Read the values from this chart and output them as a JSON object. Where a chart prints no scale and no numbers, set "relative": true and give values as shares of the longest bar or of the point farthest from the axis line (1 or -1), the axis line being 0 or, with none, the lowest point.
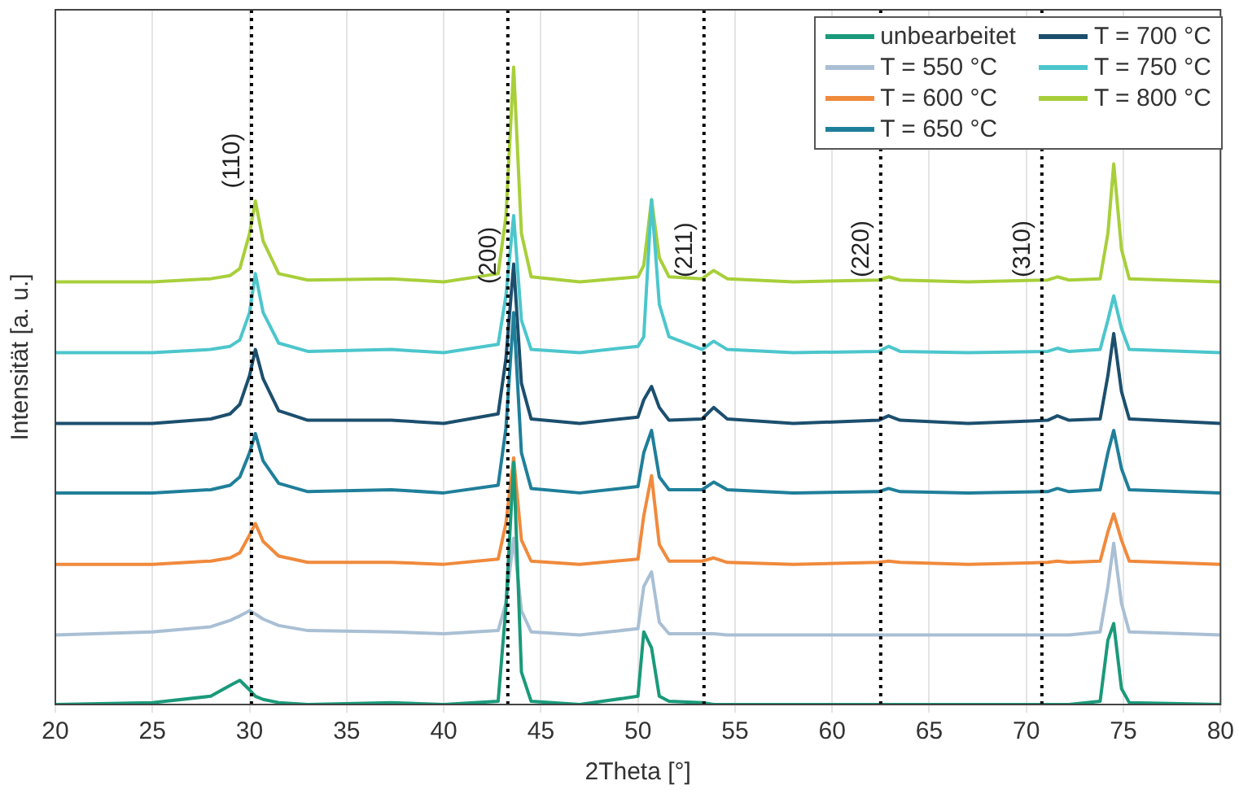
{
  "chart_data": {
    "type": "line",
    "relative": true,
    "xlabel": "2Theta [°]",
    "ylabel": "Intensität [a. u.]",
    "x": [
      20,
      25,
      28,
      29,
      29.5,
      30,
      30.3,
      30.7,
      31.5,
      33,
      37.3,
      40,
      42.8,
      43.2,
      43.6,
      44.0,
      44.5,
      47,
      50.0,
      50.3,
      50.7,
      51.1,
      51.6,
      53.3,
      53.9,
      54.6,
      58,
      62.4,
      62.9,
      63.5,
      67,
      71.1,
      71.6,
      72.2,
      73.8,
      74.2,
      74.5,
      74.9,
      75.3,
      80
    ],
    "xlim": [
      20,
      80
    ],
    "xticks": [
      20,
      25,
      30,
      35,
      40,
      45,
      50,
      55,
      60,
      65,
      70,
      75,
      80
    ],
    "grid": true,
    "legend": "top right",
    "marker": "none",
    "line_style": "solid",
    "series": [
      {
        "name": "unbearbeitet",
        "color": "#1a9a7a",
        "values": [
          0,
          0.003,
          0.013,
          0.03,
          0.038,
          0.023,
          0.013,
          0.008,
          0.003,
          0,
          0.003,
          0,
          0.005,
          0.152,
          0.38,
          0.051,
          0.005,
          0,
          0.013,
          0.114,
          0.089,
          0.013,
          0.005,
          0.003,
          0,
          0,
          0,
          0,
          0,
          0,
          0,
          0,
          0,
          0,
          0.005,
          0.101,
          0.127,
          0.025,
          0.003,
          0
        ]
      },
      {
        "name": "T = 550 °C",
        "color": "#a9bfd4",
        "values": [
          0.109,
          0.114,
          0.122,
          0.132,
          0.139,
          0.147,
          0.142,
          0.134,
          0.124,
          0.116,
          0.114,
          0.111,
          0.116,
          0.159,
          0.261,
          0.147,
          0.114,
          0.109,
          0.119,
          0.185,
          0.208,
          0.129,
          0.111,
          0.111,
          0.111,
          0.109,
          0.109,
          0.109,
          0.109,
          0.109,
          0.109,
          0.109,
          0.109,
          0.109,
          0.114,
          0.185,
          0.253,
          0.159,
          0.114,
          0.109
        ]
      },
      {
        "name": "T = 600 °C",
        "color": "#f08a3c",
        "values": [
          0.22,
          0.22,
          0.225,
          0.23,
          0.238,
          0.266,
          0.284,
          0.256,
          0.233,
          0.223,
          0.223,
          0.22,
          0.228,
          0.284,
          0.387,
          0.258,
          0.225,
          0.22,
          0.228,
          0.296,
          0.359,
          0.251,
          0.225,
          0.225,
          0.23,
          0.223,
          0.22,
          0.223,
          0.225,
          0.223,
          0.22,
          0.223,
          0.225,
          0.223,
          0.225,
          0.271,
          0.299,
          0.258,
          0.225,
          0.22
        ]
      },
      {
        "name": "T = 650 °C",
        "color": "#1f7f9a",
        "values": [
          0.332,
          0.332,
          0.337,
          0.344,
          0.357,
          0.395,
          0.425,
          0.382,
          0.347,
          0.334,
          0.337,
          0.332,
          0.344,
          0.433,
          0.615,
          0.395,
          0.339,
          0.332,
          0.342,
          0.395,
          0.43,
          0.357,
          0.337,
          0.337,
          0.349,
          0.337,
          0.332,
          0.334,
          0.339,
          0.334,
          0.332,
          0.334,
          0.339,
          0.334,
          0.337,
          0.395,
          0.43,
          0.37,
          0.337,
          0.332
        ]
      },
      {
        "name": "T = 700 °C",
        "color": "#1c4f6e",
        "values": [
          0.441,
          0.441,
          0.448,
          0.456,
          0.471,
          0.516,
          0.557,
          0.511,
          0.461,
          0.446,
          0.446,
          0.441,
          0.456,
          0.542,
          0.691,
          0.504,
          0.448,
          0.441,
          0.451,
          0.478,
          0.499,
          0.466,
          0.446,
          0.448,
          0.466,
          0.448,
          0.441,
          0.446,
          0.453,
          0.446,
          0.441,
          0.446,
          0.453,
          0.446,
          0.448,
          0.516,
          0.582,
          0.491,
          0.448,
          0.441
        ]
      },
      {
        "name": "T = 750 °C",
        "color": "#4cc6cc",
        "values": [
          0.552,
          0.552,
          0.557,
          0.562,
          0.572,
          0.615,
          0.676,
          0.615,
          0.567,
          0.554,
          0.557,
          0.552,
          0.565,
          0.641,
          0.767,
          0.603,
          0.557,
          0.552,
          0.562,
          0.577,
          0.792,
          0.628,
          0.577,
          0.557,
          0.57,
          0.557,
          0.552,
          0.554,
          0.562,
          0.554,
          0.552,
          0.554,
          0.559,
          0.554,
          0.557,
          0.603,
          0.641,
          0.59,
          0.557,
          0.552
        ]
      },
      {
        "name": "T = 800 °C",
        "color": "#a8cf3a",
        "values": [
          0.663,
          0.663,
          0.668,
          0.673,
          0.684,
          0.739,
          0.79,
          0.727,
          0.676,
          0.666,
          0.668,
          0.663,
          0.676,
          0.765,
          1.0,
          0.739,
          0.671,
          0.663,
          0.671,
          0.689,
          0.792,
          0.701,
          0.671,
          0.668,
          0.681,
          0.668,
          0.663,
          0.666,
          0.671,
          0.666,
          0.663,
          0.666,
          0.671,
          0.666,
          0.668,
          0.739,
          0.848,
          0.714,
          0.668,
          0.663
        ]
      }
    ],
    "ref_lines": [
      {
        "axis": "x",
        "value": 30.1,
        "color": "#000000",
        "line_style": "dotted"
      },
      {
        "axis": "x",
        "value": 43.3,
        "color": "#000000",
        "line_style": "dotted"
      },
      {
        "axis": "x",
        "value": 53.4,
        "color": "#000000",
        "line_style": "dotted"
      },
      {
        "axis": "x",
        "value": 62.5,
        "color": "#000000",
        "line_style": "dotted"
      },
      {
        "axis": "x",
        "value": 70.8,
        "color": "#000000",
        "line_style": "dotted"
      }
    ],
    "annotations": [
      {
        "text": "(110)",
        "x": 30.1,
        "y": 0.81
      },
      {
        "text": "(200)",
        "x": 43.3,
        "y": 0.66
      },
      {
        "text": "(211)",
        "x": 53.4,
        "y": 0.67
      },
      {
        "text": "(220)",
        "x": 62.5,
        "y": 0.67
      },
      {
        "text": "(310)",
        "x": 70.8,
        "y": 0.67
      }
    ]
  }
}
